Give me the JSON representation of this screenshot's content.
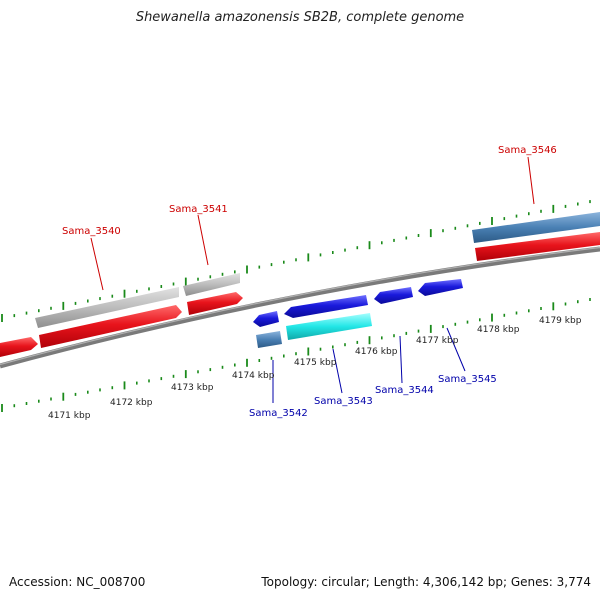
{
  "title": "Shewanella amazonensis SB2B, complete genome",
  "footer": {
    "accession": "Accession: NC_008700",
    "summary": "Topology: circular; Length: 4,306,142 bp; Genes: 3,774"
  },
  "scale_labels": [
    "4171 kbp",
    "4172 kbp",
    "4173 kbp",
    "4174 kbp",
    "4175 kbp",
    "4176 kbp",
    "4177 kbp",
    "4178 kbp",
    "4179 kbp"
  ],
  "genes": [
    {
      "label": "Sama_3540",
      "strand": "forward"
    },
    {
      "label": "Sama_3541",
      "strand": "forward"
    },
    {
      "label": "Sama_3542",
      "strand": "reverse"
    },
    {
      "label": "Sama_3543",
      "strand": "reverse"
    },
    {
      "label": "Sama_3544",
      "strand": "reverse"
    },
    {
      "label": "Sama_3545",
      "strand": "reverse"
    },
    {
      "label": "Sama_3546",
      "strand": "forward"
    }
  ],
  "colors": {
    "forward_cds": "#e8141c",
    "reverse_cds": "#1a1adc",
    "forward_gene": "#b8b8b8",
    "highlight_gene": "#22e6e6",
    "steelblue_gene": "#4a80b4",
    "backbone": "#808080",
    "tick": "#1a8a1a",
    "forward_label": "#cc0000",
    "reverse_label": "#0000aa"
  }
}
